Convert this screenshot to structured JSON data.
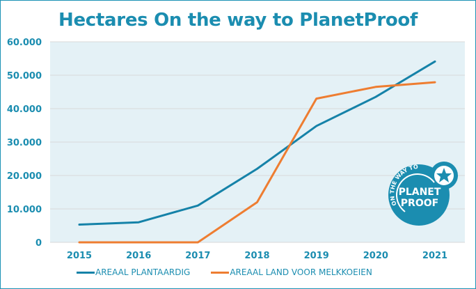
{
  "chart_data": {
    "type": "line",
    "title": "Hectares On the way to PlanetProof",
    "xlabel": "",
    "ylabel": "",
    "categories": [
      "2015",
      "2016",
      "2017",
      "2018",
      "2019",
      "2020",
      "2021"
    ],
    "ylim": [
      0,
      60000
    ],
    "yticks": [
      0,
      10000,
      20000,
      30000,
      40000,
      50000,
      60000
    ],
    "ytick_labels": [
      "0",
      "10.000",
      "20.000",
      "30.000",
      "40.000",
      "50.000",
      "60.000"
    ],
    "grid": true,
    "legend_position": "bottom",
    "series": [
      {
        "name": "AREAAL PLANTAARDIG",
        "color": "#1582a8",
        "values": [
          5300,
          6000,
          11000,
          22000,
          34800,
          43500,
          54100
        ]
      },
      {
        "name": "AREAAL LAND VOOR MELKKOEIEN",
        "color": "#ee7d31",
        "values": [
          0,
          0,
          0,
          12000,
          43000,
          46500,
          47900
        ]
      }
    ]
  },
  "logo": {
    "arc_text": "ON THE WAY TO",
    "line1": "PLANET",
    "line2": "PROOF",
    "color": "#1b8db0"
  },
  "colors": {
    "accent": "#1b8db0",
    "plot_background": "#e4f1f6",
    "gridline": "#d9d9d9"
  }
}
